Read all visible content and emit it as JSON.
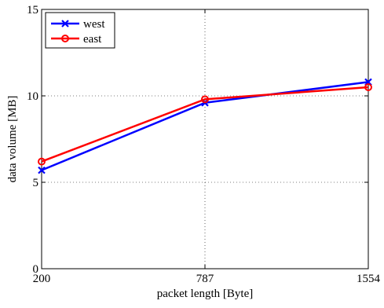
{
  "chart_data": {
    "type": "line",
    "title": "",
    "xlabel": "packet length [Byte]",
    "ylabel": "data volume [MB]",
    "x": [
      200,
      787,
      1554
    ],
    "x_tick_labels": [
      "200",
      "787",
      "1554"
    ],
    "y_tick_labels": [
      "0",
      "5",
      "10",
      "15"
    ],
    "yticks": [
      0,
      5,
      10,
      15
    ],
    "ylim": [
      0,
      15
    ],
    "grid": true,
    "legend_position": "top-left",
    "series": [
      {
        "name": "west",
        "values": [
          5.7,
          9.6,
          10.8
        ],
        "color": "#0000ff",
        "marker": "x"
      },
      {
        "name": "east",
        "values": [
          6.2,
          9.8,
          10.5
        ],
        "color": "#ff0000",
        "marker": "o"
      }
    ]
  }
}
